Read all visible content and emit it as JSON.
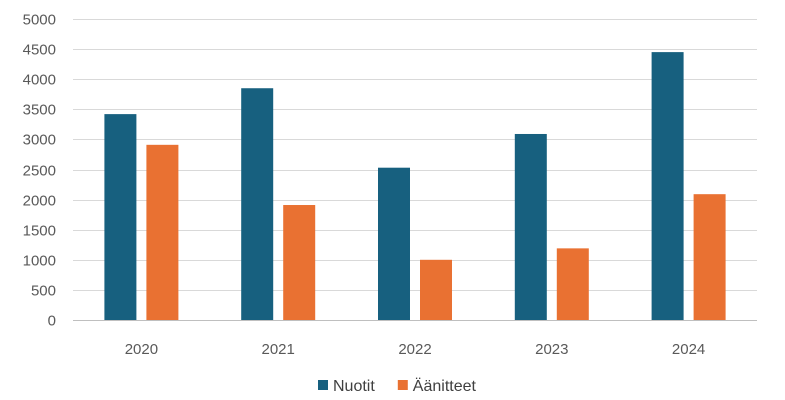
{
  "chart_data": {
    "type": "bar",
    "categories": [
      "2020",
      "2021",
      "2022",
      "2023",
      "2024"
    ],
    "series": [
      {
        "name": "Nuotit",
        "values": [
          3420,
          3850,
          2530,
          3090,
          4450
        ],
        "color": "#17607f"
      },
      {
        "name": "Äänitteet",
        "values": [
          2910,
          1910,
          1000,
          1190,
          2090
        ],
        "color": "#e97132"
      }
    ],
    "ylim": [
      0,
      5000
    ],
    "yticks": [
      "0",
      "500",
      "1000",
      "1500",
      "2000",
      "2500",
      "3000",
      "3500",
      "4000",
      "4500",
      "5000"
    ],
    "grid": true,
    "legend_position": "bottom",
    "title": "",
    "xlabel": "",
    "ylabel": ""
  }
}
